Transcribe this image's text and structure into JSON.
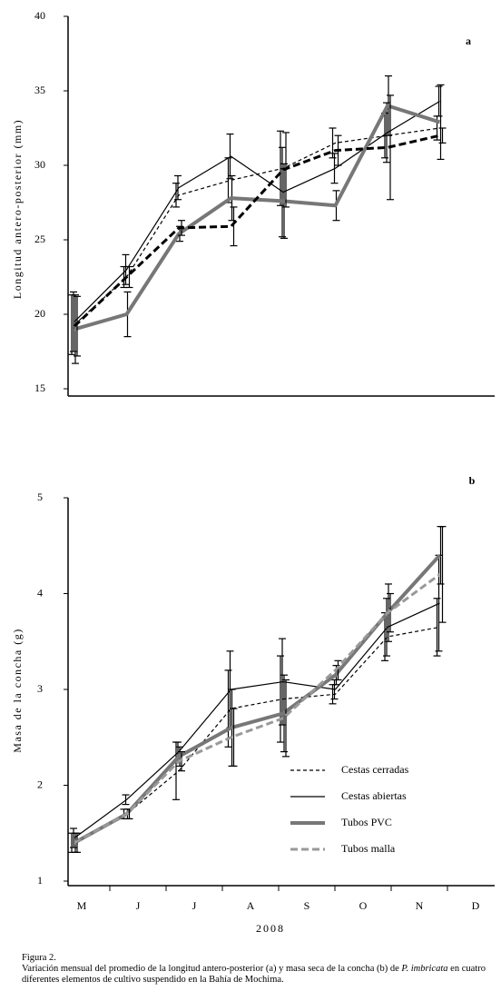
{
  "chart_data": [
    {
      "type": "line",
      "panel": "a",
      "ylabel": "Longitud antero-posterior (mm)",
      "ylim": [
        15,
        40
      ],
      "yticks": [
        15,
        20,
        25,
        30,
        35,
        40
      ],
      "series": [
        {
          "color": "#000000",
          "dash": true,
          "width": 1.2,
          "values": [
            19.3,
            22.5,
            28,
            29,
            29.8,
            31.5,
            32,
            32.5
          ],
          "errors": [
            2,
            0.7,
            0.8,
            1.5,
            2.5,
            1,
            1.5,
            0.8
          ]
        },
        {
          "color": "#000000",
          "dash": false,
          "width": 1.2,
          "values": [
            19.5,
            23,
            28.5,
            30.6,
            28.2,
            29.8,
            32.2,
            34.3
          ],
          "errors": [
            2,
            1,
            0.8,
            1.5,
            3,
            1,
            2,
            1
          ]
        },
        {
          "color": "#777777",
          "dash": false,
          "width": 4,
          "values": [
            19,
            20,
            25.4,
            27.8,
            27.6,
            27.3,
            34,
            32.9
          ],
          "errors": [
            2.3,
            1.5,
            0.5,
            1.5,
            2.5,
            1,
            2,
            2.5
          ]
        },
        {
          "color": "#000000",
          "dash": true,
          "width": 3,
          "values": [
            19.2,
            22.5,
            25.8,
            25.9,
            29.7,
            31,
            31.2,
            32
          ],
          "errors": [
            2,
            0.7,
            0.5,
            1.3,
            2.5,
            1,
            3.5,
            0.5
          ]
        }
      ]
    },
    {
      "type": "line",
      "panel": "b",
      "ylabel": "Masa de la concha (g)",
      "xlabel": "2008",
      "categories": [
        "M",
        "J",
        "J",
        "A",
        "S",
        "O",
        "N",
        "D"
      ],
      "ylim": [
        1,
        5
      ],
      "yticks": [
        1,
        2,
        3,
        4,
        5
      ],
      "series": [
        {
          "name": "Cestas cerradas",
          "color": "#000000",
          "dash": true,
          "width": 1.2,
          "values": [
            1.4,
            1.7,
            2.15,
            2.8,
            2.9,
            2.95,
            3.55,
            3.65
          ],
          "errors": [
            0.1,
            0.05,
            0.3,
            0.4,
            0.45,
            0.1,
            0.25,
            0.3
          ]
        },
        {
          "name": "Cestas abiertas",
          "color": "#000000",
          "dash": false,
          "width": 1.2,
          "values": [
            1.45,
            1.85,
            2.35,
            3.0,
            3.08,
            3.0,
            3.65,
            3.9
          ],
          "errors": [
            0.1,
            0.05,
            0.1,
            0.4,
            0.45,
            0.1,
            0.3,
            0.5
          ]
        },
        {
          "name": "Tubos PVC",
          "color": "#777777",
          "dash": false,
          "width": 4,
          "values": [
            1.4,
            1.7,
            2.3,
            2.6,
            2.75,
            3.15,
            3.8,
            4.4
          ],
          "errors": [
            0.1,
            0.05,
            0.1,
            0.4,
            0.4,
            0.1,
            0.3,
            0.3
          ]
        },
        {
          "name": "Tubos malla",
          "color": "#999999",
          "dash": true,
          "width": 3,
          "values": [
            1.4,
            1.7,
            2.25,
            2.5,
            2.7,
            3.2,
            3.8,
            4.2
          ],
          "errors": [
            0.1,
            0.05,
            0.1,
            0.3,
            0.4,
            0.1,
            0.2,
            0.5
          ]
        }
      ]
    }
  ],
  "caption": {
    "label": "Figura 2.",
    "text_before": "Variación mensual del promedio de la longitud antero-posterior (a) y masa seca de la concha (b) de ",
    "species": "P. imbricata",
    "text_after": " en cuatro diferentes elementos de cultivo suspendido en la Bahía de Mochima."
  }
}
